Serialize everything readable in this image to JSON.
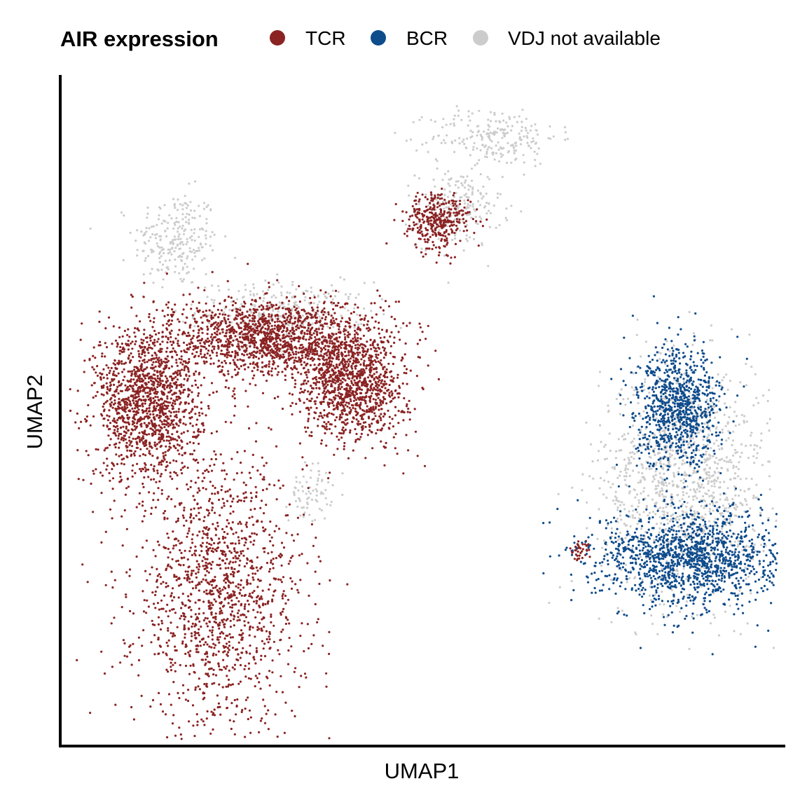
{
  "legend": {
    "title": "AIR expression",
    "items": [
      {
        "label": "TCR",
        "color": "#8B2323"
      },
      {
        "label": "BCR",
        "color": "#0F4C8C"
      },
      {
        "label": "VDJ not available",
        "color": "#CCCCCC"
      }
    ]
  },
  "chart_data": {
    "type": "scatter",
    "title": "",
    "xlabel": "UMAP1",
    "ylabel": "UMAP2",
    "x_ticks": "none",
    "y_ticks": "none",
    "grid": false,
    "legend_position": "top",
    "xlim": [
      0,
      100
    ],
    "ylim": [
      0,
      100
    ],
    "series": [
      {
        "name": "TCR",
        "color": "#8B2323",
        "approx_points": 9000,
        "clusters": [
          {
            "region": "lower-left main body",
            "center": [
              21,
              22
            ],
            "spread": [
              8,
              14
            ]
          },
          {
            "region": "left lobe",
            "center": [
              11,
              52
            ],
            "spread": [
              5,
              8
            ]
          },
          {
            "region": "upper-middle band",
            "center": [
              28,
              62
            ],
            "spread": [
              9,
              4
            ]
          },
          {
            "region": "right arm",
            "center": [
              40,
              55
            ],
            "spread": [
              5,
              6
            ]
          },
          {
            "region": "small upper cluster",
            "center": [
              52,
              80
            ],
            "spread": [
              3,
              3
            ]
          },
          {
            "region": "tip near B cells",
            "center": [
              72,
              29
            ],
            "spread": [
              1,
              1
            ]
          }
        ]
      },
      {
        "name": "BCR",
        "color": "#0F4C8C",
        "approx_points": 2600,
        "clusters": [
          {
            "region": "upper B lobe",
            "center": [
              86,
              51
            ],
            "spread": [
              4,
              6
            ]
          },
          {
            "region": "lower B body",
            "center": [
              88,
              28
            ],
            "spread": [
              9,
              5
            ]
          }
        ]
      },
      {
        "name": "VDJ not available",
        "color": "#CCCCCC",
        "approx_points": 2200,
        "clusters": [
          {
            "region": "top-left cap",
            "center": [
              15,
              77
            ],
            "spread": [
              4,
              5
            ]
          },
          {
            "region": "upper-middle patches",
            "center": [
              30,
              66
            ],
            "spread": [
              8,
              3
            ]
          },
          {
            "region": "mid patch",
            "center": [
              34,
              38
            ],
            "spread": [
              2,
              3
            ]
          },
          {
            "region": "upper cluster",
            "center": [
              55,
              82
            ],
            "spread": [
              4,
              4
            ]
          },
          {
            "region": "top strands",
            "center": [
              60,
              93
            ],
            "spread": [
              6,
              3
            ]
          },
          {
            "region": "B lobe fringe",
            "center": [
              87,
              40
            ],
            "spread": [
              8,
              12
            ]
          }
        ]
      }
    ]
  }
}
